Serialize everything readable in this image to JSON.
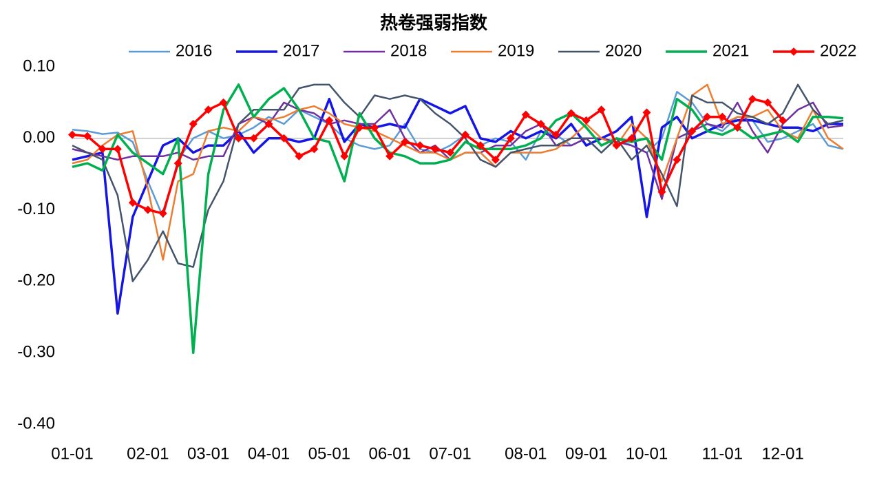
{
  "chart_data": {
    "type": "line",
    "title": "热卷强弱指数",
    "categories": [
      "01-01",
      null,
      null,
      null,
      null,
      "02-01",
      null,
      null,
      null,
      "03-01",
      null,
      null,
      null,
      "04-01",
      null,
      null,
      null,
      "05-01",
      null,
      null,
      null,
      "06-01",
      null,
      null,
      null,
      "07-01",
      null,
      null,
      null,
      null,
      "08-01",
      null,
      null,
      null,
      "09-01",
      null,
      null,
      null,
      "10-01",
      null,
      null,
      null,
      null,
      "11-01",
      null,
      null,
      null,
      "12-01",
      null,
      null,
      null,
      null
    ],
    "ylim": [
      -0.4,
      0.1
    ],
    "yticks": [
      {
        "value": 0.1,
        "label": "0.10"
      },
      {
        "value": 0,
        "label": "0.00"
      },
      {
        "value": -0.1,
        "label": "-0.10"
      },
      {
        "value": -0.2,
        "label": "-0.20"
      },
      {
        "value": -0.3,
        "label": "-0.30"
      },
      {
        "value": -0.4,
        "label": "-0.40"
      }
    ],
    "legend": "top",
    "series": [
      {
        "name": "2016",
        "color": "#5b9bd5",
        "values": [
          0.012,
          0.01,
          0.006,
          0.008,
          -0.005,
          -0.06,
          -0.11,
          -0.03,
          0.0,
          0.01,
          0.0,
          0.005,
          0.015,
          0.03,
          0.02,
          0.04,
          0.03,
          0.02,
          0.0,
          -0.01,
          -0.015,
          -0.01,
          0.02,
          -0.015,
          -0.02,
          -0.01,
          0.005,
          -0.01,
          0.0,
          -0.005,
          -0.03,
          0.01,
          0.005,
          -0.01,
          0.0,
          -0.02,
          0.0,
          -0.01,
          -0.02,
          0.0,
          0.065,
          0.05,
          0.02,
          0.01,
          0.03,
          0.025,
          -0.005,
          0.0,
          0.01,
          0.02,
          -0.01,
          -0.015
        ]
      },
      {
        "name": "2017",
        "color": "#1515e6",
        "values": [
          -0.03,
          -0.025,
          -0.02,
          -0.245,
          -0.11,
          -0.06,
          -0.01,
          0.0,
          -0.02,
          -0.01,
          -0.01,
          0.01,
          -0.02,
          0.0,
          0.0,
          -0.005,
          0.0,
          0.055,
          -0.005,
          0.02,
          0.015,
          0.02,
          0.015,
          0.055,
          0.045,
          0.035,
          0.045,
          0.0,
          -0.005,
          0.01,
          0.0,
          0.01,
          0.0,
          0.02,
          -0.01,
          0.0,
          0.01,
          0.03,
          -0.11,
          0.015,
          0.03,
          0.0,
          0.01,
          0.02,
          0.025,
          0.025,
          0.02,
          0.015,
          0.015,
          0.01,
          0.02,
          0.02
        ]
      },
      {
        "name": "2018",
        "color": "#7030a0",
        "values": [
          -0.015,
          -0.02,
          -0.025,
          -0.03,
          -0.025,
          -0.025,
          -0.025,
          -0.02,
          -0.03,
          -0.025,
          -0.025,
          0.02,
          0.03,
          0.02,
          0.05,
          0.04,
          0.035,
          0.02,
          0.025,
          0.02,
          0.02,
          0.04,
          0.0,
          -0.02,
          -0.01,
          -0.03,
          -0.02,
          -0.02,
          -0.01,
          -0.01,
          0.01,
          0.02,
          -0.01,
          -0.01,
          0.0,
          0.0,
          -0.005,
          -0.01,
          -0.02,
          -0.085,
          0.0,
          0.01,
          0.02,
          0.015,
          0.05,
          0.01,
          -0.02,
          0.02,
          0.04,
          0.05,
          0.015,
          0.018
        ]
      },
      {
        "name": "2019",
        "color": "#ed7d31",
        "values": [
          -0.035,
          -0.03,
          -0.01,
          0.005,
          0.01,
          -0.07,
          -0.17,
          -0.06,
          -0.05,
          0.01,
          0.015,
          0.01,
          0.03,
          0.025,
          0.03,
          0.04,
          0.045,
          0.035,
          0.02,
          0.015,
          0.01,
          0.0,
          -0.01,
          -0.02,
          -0.02,
          -0.03,
          -0.02,
          -0.02,
          -0.04,
          -0.02,
          -0.02,
          -0.02,
          -0.015,
          0.0,
          0.02,
          0.0,
          -0.01,
          0.02,
          0.0,
          -0.06,
          0.0,
          0.06,
          0.075,
          0.02,
          0.03,
          0.03,
          0.04,
          0.01,
          0.0,
          0.04,
          0.0,
          -0.015
        ]
      },
      {
        "name": "2020",
        "color": "#44546a",
        "values": [
          -0.01,
          -0.02,
          -0.03,
          -0.08,
          -0.2,
          -0.17,
          -0.13,
          -0.175,
          -0.18,
          -0.1,
          -0.06,
          0.02,
          0.04,
          0.04,
          0.04,
          0.07,
          0.075,
          0.075,
          0.05,
          0.03,
          0.06,
          0.055,
          0.06,
          0.055,
          0.035,
          0.02,
          0.0,
          -0.03,
          -0.04,
          -0.02,
          -0.015,
          -0.01,
          -0.01,
          0.0,
          0.0,
          -0.02,
          0.0,
          -0.03,
          -0.01,
          -0.05,
          -0.095,
          0.06,
          0.05,
          0.05,
          0.035,
          0.03,
          0.02,
          0.035,
          0.075,
          0.04,
          0.02,
          0.025
        ]
      },
      {
        "name": "2021",
        "color": "#00b050",
        "values": [
          -0.04,
          -0.035,
          -0.045,
          0.005,
          -0.02,
          -0.035,
          -0.05,
          0.0,
          -0.3,
          -0.05,
          0.04,
          0.075,
          0.03,
          0.055,
          0.07,
          0.04,
          0.0,
          -0.005,
          -0.06,
          0.035,
          0.0,
          -0.02,
          -0.025,
          -0.035,
          -0.035,
          -0.03,
          -0.005,
          -0.015,
          -0.015,
          -0.015,
          -0.01,
          0.0,
          0.025,
          0.035,
          0.015,
          -0.01,
          0.0,
          -0.005,
          0.0,
          -0.03,
          0.055,
          0.04,
          0.01,
          0.005,
          0.015,
          0.0,
          0.005,
          0.01,
          -0.005,
          0.03,
          0.03,
          0.028
        ]
      },
      {
        "name": "2022",
        "color": "#ff0000",
        "marker": "diamond",
        "values": [
          0.005,
          0.003,
          -0.015,
          -0.015,
          -0.09,
          -0.1,
          -0.105,
          -0.035,
          0.02,
          0.04,
          0.05,
          0.0,
          0.0,
          0.02,
          0.0,
          -0.025,
          -0.015,
          0.025,
          -0.025,
          0.015,
          0.015,
          -0.025,
          -0.005,
          -0.01,
          -0.015,
          -0.02,
          0.005,
          -0.01,
          -0.03,
          0.0,
          0.033,
          0.02,
          0.005,
          0.035,
          0.025,
          0.04,
          -0.01,
          0.0,
          0.036,
          -0.075,
          -0.03,
          0.01,
          0.03,
          0.03,
          0.015,
          0.055,
          0.05,
          0.025,
          null,
          null,
          null,
          null
        ]
      }
    ]
  }
}
